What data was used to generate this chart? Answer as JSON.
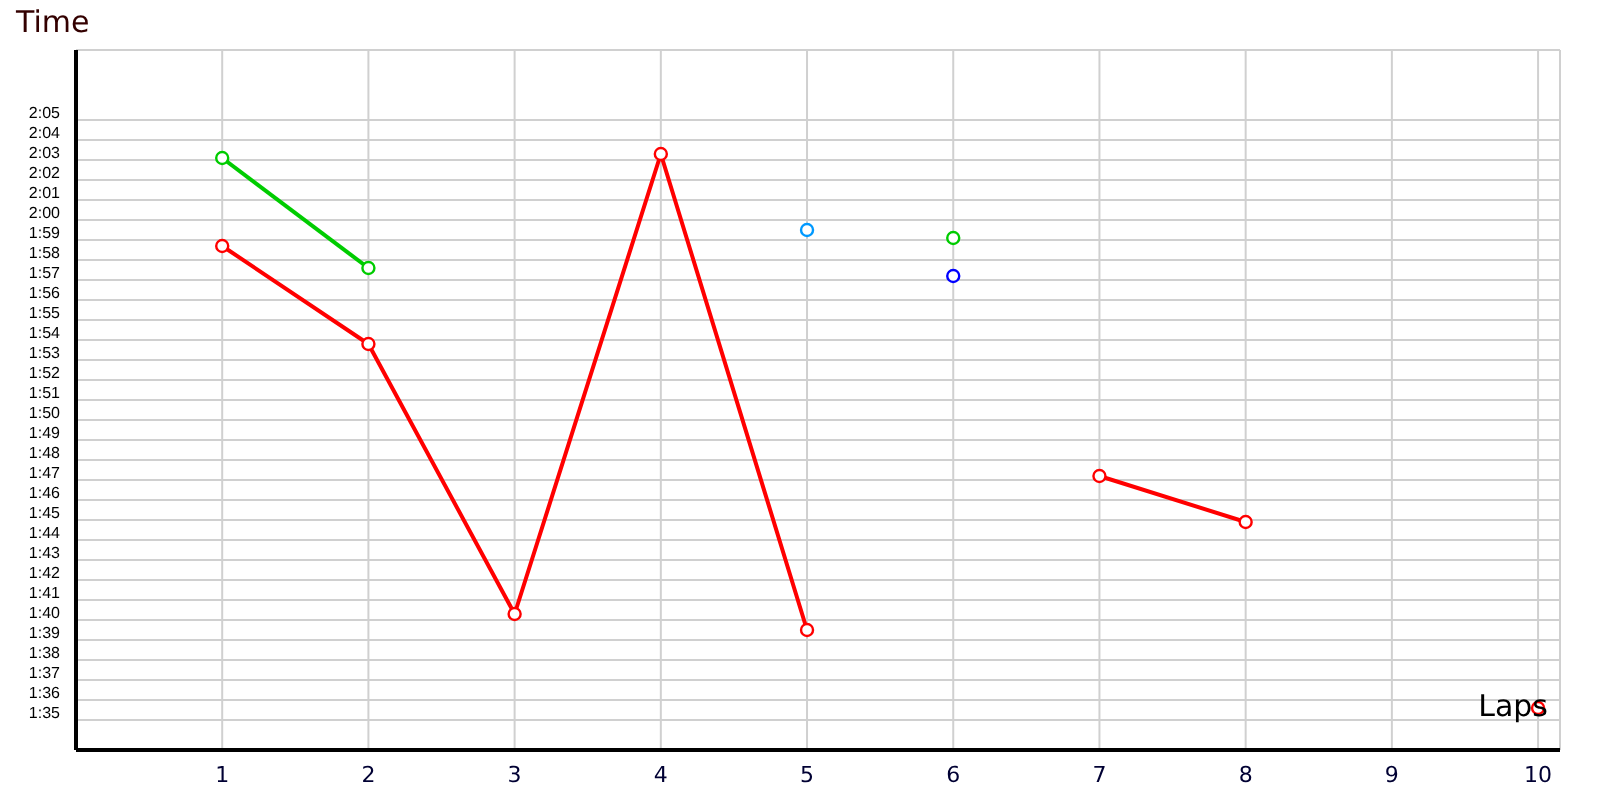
{
  "chart_data": {
    "type": "line",
    "xlabel": "Laps",
    "ylabel": "Time",
    "x": [
      1,
      2,
      3,
      4,
      5,
      6,
      7,
      8,
      9,
      10
    ],
    "series": [
      {
        "color": "#ff0000",
        "values": [
          118.7,
          113.8,
          100.3,
          123.3,
          99.5,
          null,
          107.2,
          104.9,
          null,
          95.6
        ]
      },
      {
        "color": "#00cc00",
        "values": [
          123.1,
          117.6,
          null,
          null,
          null,
          119.1,
          null,
          null,
          null,
          null
        ]
      },
      {
        "color": "#0099ff",
        "values": [
          null,
          null,
          null,
          null,
          119.5,
          null,
          null,
          null,
          null,
          null
        ]
      },
      {
        "color": "#0000ff",
        "values": [
          null,
          null,
          null,
          null,
          null,
          117.2,
          null,
          null,
          null,
          null
        ]
      }
    ],
    "xlim": [
      0,
      10.15
    ],
    "xticks": [
      1,
      2,
      3,
      4,
      5,
      6,
      7,
      8,
      9,
      10
    ],
    "ylim": [
      93.5,
      128.5
    ],
    "yticks": [
      {
        "value": 95,
        "label": "1:35"
      },
      {
        "value": 96,
        "label": "1:36"
      },
      {
        "value": 97,
        "label": "1:37"
      },
      {
        "value": 98,
        "label": "1:38"
      },
      {
        "value": 99,
        "label": "1:39"
      },
      {
        "value": 100,
        "label": "1:40"
      },
      {
        "value": 101,
        "label": "1:41"
      },
      {
        "value": 102,
        "label": "1:42"
      },
      {
        "value": 103,
        "label": "1:43"
      },
      {
        "value": 104,
        "label": "1:44"
      },
      {
        "value": 105,
        "label": "1:45"
      },
      {
        "value": 106,
        "label": "1:46"
      },
      {
        "value": 107,
        "label": "1:47"
      },
      {
        "value": 108,
        "label": "1:48"
      },
      {
        "value": 109,
        "label": "1:49"
      },
      {
        "value": 110,
        "label": "1:50"
      },
      {
        "value": 111,
        "label": "1:51"
      },
      {
        "value": 112,
        "label": "1:52"
      },
      {
        "value": 113,
        "label": "1:53"
      },
      {
        "value": 114,
        "label": "1:54"
      },
      {
        "value": 115,
        "label": "1:55"
      },
      {
        "value": 116,
        "label": "1:56"
      },
      {
        "value": 117,
        "label": "1:57"
      },
      {
        "value": 118,
        "label": "1:58"
      },
      {
        "value": 119,
        "label": "1:59"
      },
      {
        "value": 120,
        "label": "2:00"
      },
      {
        "value": 121,
        "label": "2:01"
      },
      {
        "value": 122,
        "label": "2:02"
      },
      {
        "value": 123,
        "label": "2:03"
      },
      {
        "value": 124,
        "label": "2:04"
      },
      {
        "value": 125,
        "label": "2:05"
      }
    ],
    "grid": true,
    "marker": "circle",
    "line_style": "solid"
  }
}
